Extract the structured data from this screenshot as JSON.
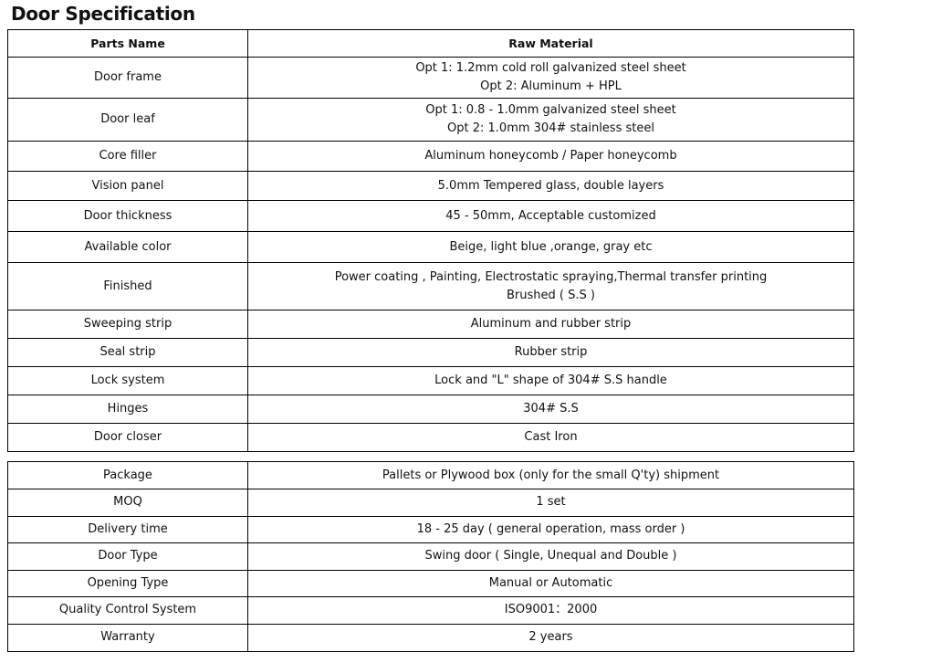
{
  "title": "Door Specification",
  "spec_table": {
    "headers": [
      "Parts Name",
      "Raw Material"
    ],
    "rows": [
      {
        "part": "Door frame",
        "material": [
          "Opt 1: 1.2mm cold roll galvanized steel sheet",
          "Opt 2: Aluminum + HPL"
        ]
      },
      {
        "part": "Door leaf",
        "material": [
          "Opt 1: 0.8 - 1.0mm galvanized steel sheet",
          "Opt 2: 1.0mm 304# stainless steel"
        ]
      },
      {
        "part": "Core filler",
        "material": [
          "Aluminum honeycomb / Paper honeycomb"
        ]
      },
      {
        "part": "Vision panel",
        "material": [
          "5.0mm Tempered glass, double layers"
        ]
      },
      {
        "part": "Door thickness",
        "material": [
          "45 - 50mm, Acceptable customized"
        ]
      },
      {
        "part": "Available color",
        "material": [
          "Beige, light blue ,orange, gray etc"
        ]
      },
      {
        "part": "Finished",
        "material": [
          "Power coating , Painting, Electrostatic spraying,Thermal transfer printing",
          "Brushed ( S.S )"
        ]
      },
      {
        "part": "Sweeping strip",
        "material": [
          "Aluminum and rubber strip"
        ]
      },
      {
        "part": "Seal strip",
        "material": [
          "Rubber strip"
        ]
      },
      {
        "part": "Lock system",
        "material": [
          "Lock and \"L\" shape of 304# S.S handle"
        ]
      },
      {
        "part": "Hinges",
        "material": [
          "304# S.S"
        ]
      },
      {
        "part": "Door closer",
        "material": [
          "Cast Iron"
        ]
      }
    ]
  },
  "info_table": {
    "rows": [
      {
        "label": "Package",
        "value": "Pallets or Plywood box (only for the small Q'ty) shipment"
      },
      {
        "label": "MOQ",
        "value": "1 set"
      },
      {
        "label": "Delivery time",
        "value": "18 - 25 day ( general operation, mass order )"
      },
      {
        "label": "Door Type",
        "value": "Swing door ( Single, Unequal and Double )"
      },
      {
        "label": "Opening Type",
        "value": "Manual or Automatic"
      },
      {
        "label": "Quality Control System",
        "value": "ISO9001：2000"
      },
      {
        "label": "Warranty",
        "value": "2 years"
      }
    ]
  }
}
